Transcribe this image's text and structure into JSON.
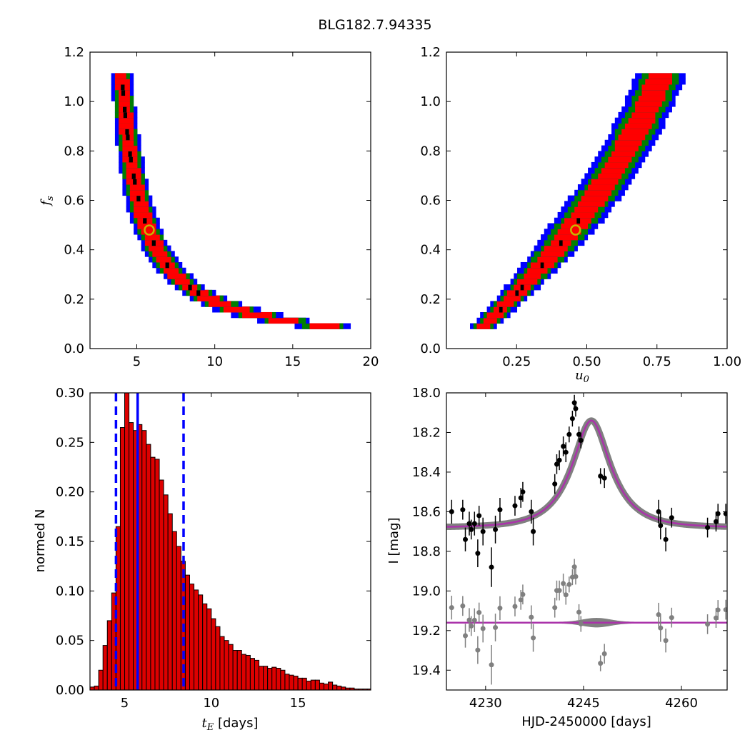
{
  "title": "BLG182.7.94335",
  "colors": {
    "sigma3": "#0000ff",
    "sigma2": "#007f00",
    "sigma1": "#ff0000",
    "best": "#000000",
    "marker": "#c8b400",
    "hist_fill": "#dd0000",
    "model": "#aa33aa",
    "model_band": "#808080",
    "data": "#000000",
    "residual": "#808080"
  },
  "chart_data": [
    {
      "id": "fs_vs_tE",
      "type": "heatmap",
      "xlabel": "",
      "ylabel": "f_s",
      "xlim": [
        2,
        20
      ],
      "ylim": [
        0,
        1.2
      ],
      "xticks": [
        5,
        10,
        15,
        20
      ],
      "xticklabels": [
        "5",
        "10",
        "15",
        "20"
      ],
      "yticks": [
        0,
        0.2,
        0.4,
        0.6,
        0.8,
        1.0,
        1.2
      ],
      "yticklabels": [
        "0.0",
        "0.2",
        "0.4",
        "0.6",
        "0.8",
        "1.0",
        "1.2"
      ],
      "levels": [
        "1-sigma",
        "2-sigma",
        "3-sigma"
      ],
      "ridge": {
        "a": 2.7,
        "b": 1.5,
        "c": 0.025
      },
      "fs_range": [
        0.08,
        1.11
      ],
      "best_fit": {
        "x": 5.8,
        "y": 0.48
      }
    },
    {
      "id": "fs_vs_u0",
      "type": "heatmap",
      "xlabel": "u_0",
      "ylabel": "",
      "xlim": [
        0,
        1.0
      ],
      "ylim": [
        0,
        1.2
      ],
      "xticks": [
        0.25,
        0.5,
        0.75,
        1.0
      ],
      "xticklabels": [
        "0.25",
        "0.50",
        "0.75",
        "1.00"
      ],
      "yticks": [
        0,
        0.2,
        0.4,
        0.6,
        0.8,
        1.0,
        1.2
      ],
      "yticklabels": [
        "0.0",
        "0.2",
        "0.4",
        "0.6",
        "0.8",
        "1.0",
        "1.2"
      ],
      "levels": [
        "1-sigma",
        "2-sigma",
        "3-sigma"
      ],
      "fs_range": [
        0.08,
        1.11
      ],
      "best_fit": {
        "x": 0.46,
        "y": 0.48
      }
    },
    {
      "id": "tE_histogram",
      "type": "bar",
      "xlabel": "t_E [days]",
      "ylabel": "normed N",
      "xlim": [
        3,
        19.2
      ],
      "ylim": [
        0,
        0.3
      ],
      "xticks": [
        5,
        10,
        15
      ],
      "xticklabels": [
        "5",
        "10",
        "15"
      ],
      "yticks": [
        0,
        0.05,
        0.1,
        0.15,
        0.2,
        0.25,
        0.3
      ],
      "yticklabels": [
        "0.00",
        "0.05",
        "0.10",
        "0.15",
        "0.20",
        "0.25",
        "0.30"
      ],
      "bin_start": 3.0,
      "bin_width": 0.25,
      "values": [
        0.003,
        0.004,
        0.02,
        0.045,
        0.07,
        0.098,
        0.165,
        0.265,
        0.3,
        0.27,
        0.262,
        0.268,
        0.262,
        0.248,
        0.235,
        0.233,
        0.212,
        0.197,
        0.178,
        0.16,
        0.145,
        0.13,
        0.116,
        0.107,
        0.101,
        0.096,
        0.087,
        0.082,
        0.072,
        0.064,
        0.054,
        0.05,
        0.046,
        0.04,
        0.04,
        0.036,
        0.035,
        0.032,
        0.03,
        0.024,
        0.024,
        0.022,
        0.023,
        0.022,
        0.02,
        0.016,
        0.015,
        0.014,
        0.012,
        0.012,
        0.009,
        0.01,
        0.01,
        0.007,
        0.006,
        0.008,
        0.005,
        0.004,
        0.003,
        0.002,
        0.002,
        0.001,
        0.001,
        0.001,
        0.001
      ],
      "vlines": [
        {
          "x": 5.75,
          "style": "solid"
        },
        {
          "x": 4.5,
          "style": "dashed"
        },
        {
          "x": 8.4,
          "style": "dashed"
        }
      ]
    },
    {
      "id": "light_curve",
      "type": "scatter",
      "xlabel": "HJD-2450000 [days]",
      "ylabel": "I [mag]",
      "xlim": [
        4224,
        4267
      ],
      "ylim": [
        19.5,
        18.0
      ],
      "xticks": [
        4230,
        4245,
        4260
      ],
      "xticklabels": [
        "4230",
        "4245",
        "4260"
      ],
      "yticks": [
        18.0,
        18.2,
        18.4,
        18.6,
        18.8,
        19.0,
        19.2,
        19.4
      ],
      "yticklabels": [
        "18.0",
        "18.2",
        "18.4",
        "18.6",
        "18.8",
        "19.0",
        "19.2",
        "19.4"
      ],
      "model": {
        "t0": 4246.2,
        "tE": 5.8,
        "u0": 0.46,
        "fs": 0.48,
        "I_base": 18.68
      },
      "residual_offset": 19.16,
      "points": [
        [
          4224.8,
          18.6,
          0.06
        ],
        [
          4226.5,
          18.59,
          0.05
        ],
        [
          4226.9,
          18.74,
          0.06
        ],
        [
          4227.5,
          18.66,
          0.06
        ],
        [
          4227.8,
          18.69,
          0.05
        ],
        [
          4228.3,
          18.66,
          0.06
        ],
        [
          4228.8,
          18.81,
          0.07
        ],
        [
          4229.0,
          18.62,
          0.05
        ],
        [
          4229.6,
          18.7,
          0.07
        ],
        [
          4230.9,
          18.88,
          0.1
        ],
        [
          4231.5,
          18.69,
          0.07
        ],
        [
          4232.2,
          18.59,
          0.06
        ],
        [
          4234.5,
          18.57,
          0.05
        ],
        [
          4235.4,
          18.53,
          0.05
        ],
        [
          4235.7,
          18.5,
          0.05
        ],
        [
          4237.0,
          18.6,
          0.06
        ],
        [
          4237.3,
          18.7,
          0.07
        ],
        [
          4240.6,
          18.46,
          0.05
        ],
        [
          4240.9,
          18.36,
          0.05
        ],
        [
          4241.3,
          18.34,
          0.05
        ],
        [
          4241.9,
          18.27,
          0.05
        ],
        [
          4242.3,
          18.3,
          0.05
        ],
        [
          4242.8,
          18.21,
          0.04
        ],
        [
          4243.3,
          18.13,
          0.04
        ],
        [
          4243.6,
          18.05,
          0.04
        ],
        [
          4243.8,
          18.08,
          0.04
        ],
        [
          4244.3,
          18.21,
          0.04
        ],
        [
          4244.6,
          18.24,
          0.04
        ],
        [
          4247.6,
          18.42,
          0.04
        ],
        [
          4248.2,
          18.43,
          0.05
        ],
        [
          4256.5,
          18.6,
          0.06
        ],
        [
          4256.8,
          18.67,
          0.07
        ],
        [
          4257.6,
          18.74,
          0.06
        ],
        [
          4258.5,
          18.63,
          0.05
        ],
        [
          4264.0,
          18.68,
          0.05
        ],
        [
          4265.3,
          18.65,
          0.05
        ],
        [
          4265.6,
          18.61,
          0.05
        ],
        [
          4266.8,
          18.61,
          0.05
        ]
      ]
    }
  ]
}
